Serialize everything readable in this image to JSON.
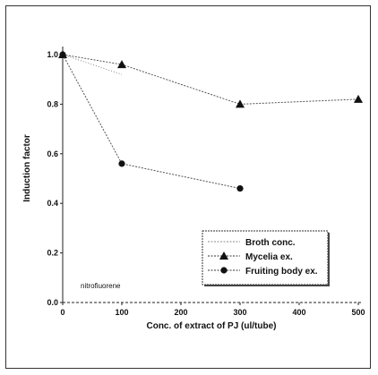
{
  "chart_data": {
    "type": "line",
    "xlabel": "Conc. of extract of PJ (ul/tube)",
    "ylabel": "Induction factor",
    "xlim": [
      0,
      500
    ],
    "ylim": [
      0.0,
      1.0
    ],
    "x_ticks": [
      "0",
      "100",
      "200",
      "300",
      "400",
      "500"
    ],
    "y_ticks": [
      "0.0",
      "0.2",
      "0.4",
      "0.6",
      "0.8",
      "1.0"
    ],
    "grid": false,
    "legend_position": "bottom-right",
    "annotation": "nitrofiuorene",
    "series": [
      {
        "name": "Broth conc.",
        "marker": "none",
        "x": [
          0,
          100
        ],
        "y": [
          1.0,
          0.92
        ]
      },
      {
        "name": "Mycelia ex.",
        "marker": "triangle",
        "x": [
          0,
          100,
          300,
          500
        ],
        "y": [
          1.0,
          0.96,
          0.8,
          0.82
        ]
      },
      {
        "name": "Fruiting body ex.",
        "marker": "circle",
        "x": [
          0,
          100,
          300
        ],
        "y": [
          1.0,
          0.56,
          0.46
        ]
      }
    ]
  }
}
